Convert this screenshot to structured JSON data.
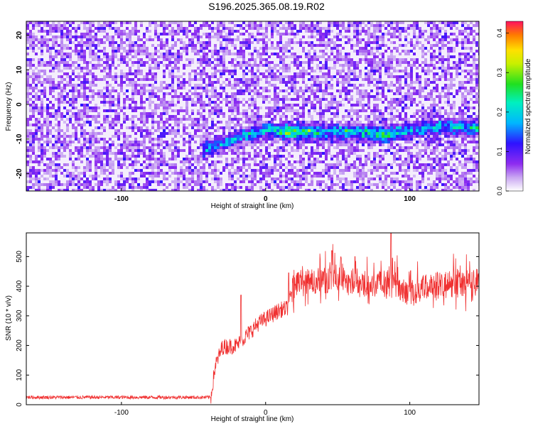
{
  "title": "S196.2025.365.08.19.R02",
  "colors": {
    "snr_line": "#f03030",
    "frame": "#000000"
  },
  "chart_data": [
    {
      "type": "heatmap",
      "title": "S196.2025.365.08.19.R02",
      "xlabel": "Height of straight line (km)",
      "ylabel": "Frequency (Hz)",
      "xlim": [
        -166,
        148
      ],
      "ylim": [
        -25,
        24
      ],
      "x_ticks": [
        -100,
        0,
        100
      ],
      "y_ticks": [
        -20,
        -10,
        0,
        10,
        20
      ],
      "colorbar": {
        "label": "Normalized spectral amplitude",
        "range": [
          0,
          0.43
        ],
        "ticks": [
          0.0,
          0.1,
          0.2,
          0.3,
          0.4
        ],
        "colormap": "rainbow (white-purple-blue-cyan-green-yellow-red)"
      },
      "signal_track": {
        "description_points_x": [
          -45,
          -20,
          0,
          16,
          40,
          60,
          82,
          100,
          120,
          148
        ],
        "frequency_hz": [
          -13,
          -9,
          -7,
          -7.5,
          -7.5,
          -7.5,
          -8.5,
          -7,
          -6,
          -6.5
        ],
        "peak_amplitude": [
          0.15,
          0.17,
          0.2,
          0.32,
          0.18,
          0.2,
          0.26,
          0.18,
          0.18,
          0.2
        ]
      },
      "background_amplitude": 0.05
    },
    {
      "type": "line",
      "xlabel": "Height of straight line (km)",
      "ylabel": "SNR (10 * v/v)",
      "xlim": [
        -166,
        148
      ],
      "ylim": [
        0,
        580
      ],
      "x_ticks": [
        -100,
        0,
        100
      ],
      "y_ticks": [
        0,
        100,
        200,
        300,
        400,
        500
      ],
      "series": [
        {
          "x": [
            -166,
            -140,
            -120,
            -100,
            -80,
            -60,
            -45,
            -38,
            -35,
            -30,
            -20,
            -15,
            -10,
            -5,
            0,
            5,
            10,
            15,
            20,
            30,
            40,
            50,
            60,
            70,
            80,
            90,
            100,
            110,
            120,
            130,
            140,
            148
          ],
          "y": [
            25,
            25,
            25,
            25,
            25,
            25,
            25,
            25,
            130,
            195,
            200,
            225,
            250,
            275,
            290,
            305,
            320,
            325,
            405,
            415,
            420,
            430,
            415,
            410,
            410,
            405,
            380,
            395,
            400,
            410,
            400,
            420
          ],
          "noise_amplitude": "±20 (quiet) to ±100 (signal)",
          "notable_spikes": {
            "x": [
              -17,
              16,
              46,
              62,
              87
            ],
            "y": [
              370,
              445,
              520,
              500,
              580
            ]
          }
        }
      ]
    }
  ]
}
